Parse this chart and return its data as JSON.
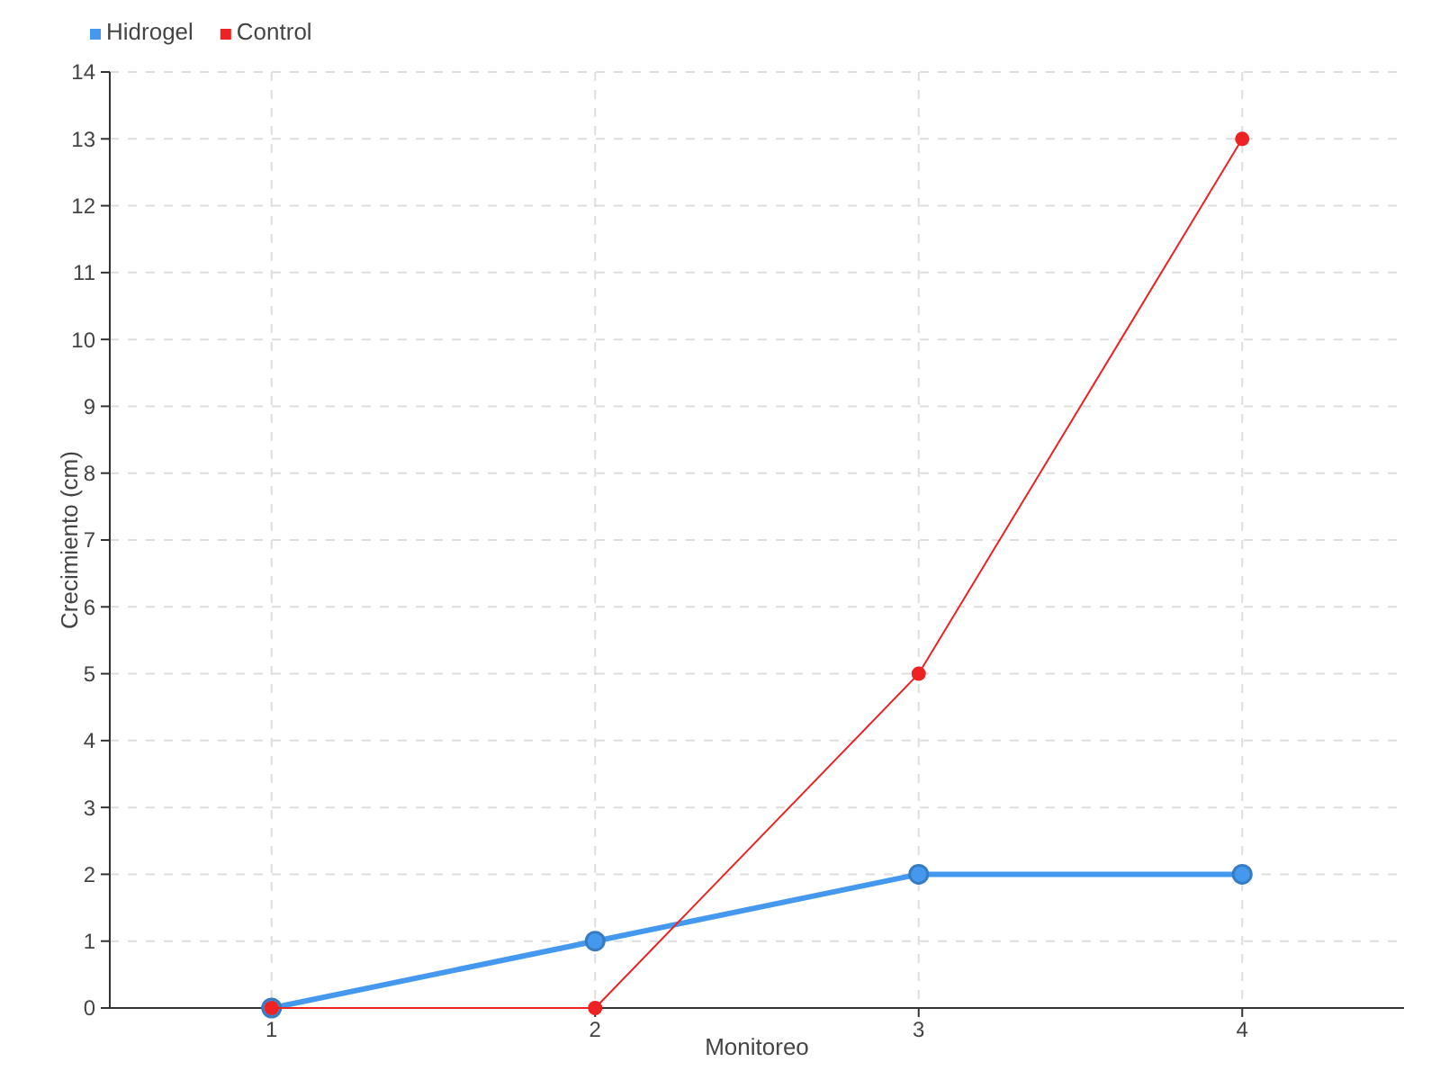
{
  "chart_data": {
    "type": "line",
    "xlabel": "Monitoreo",
    "ylabel": "Crecimiento (cm)",
    "categories": [
      "1",
      "2",
      "3",
      "4"
    ],
    "ylim": [
      0,
      14
    ],
    "yticks": [
      0,
      1,
      2,
      3,
      4,
      5,
      6,
      7,
      8,
      9,
      10,
      11,
      12,
      13,
      14
    ],
    "grid": true,
    "legend": "top left",
    "marker": "circle",
    "series": [
      {
        "name": "Hidrogel",
        "color": "#4499ee",
        "values": [
          0,
          1,
          2,
          2
        ]
      },
      {
        "name": "Control",
        "color": "#ee2222",
        "values": [
          0,
          0,
          5,
          13
        ]
      }
    ]
  }
}
